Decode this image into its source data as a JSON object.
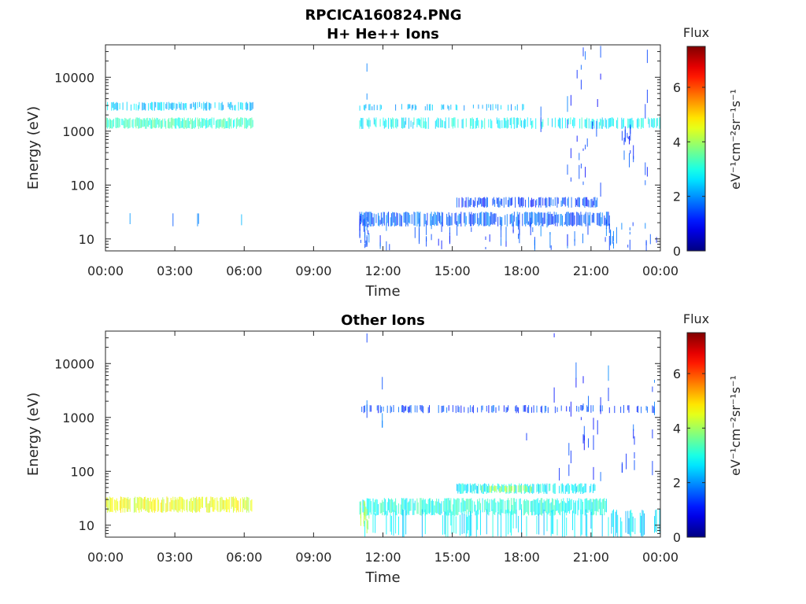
{
  "figure": {
    "title_line1": "RPCICA160824.PNG"
  },
  "chart_data": [
    {
      "type": "heatmap",
      "title": "H+ He++ Ions",
      "xlabel": "Time",
      "ylabel": "Energy (eV)",
      "x_ticks": [
        "00:00",
        "03:00",
        "06:00",
        "09:00",
        "12:00",
        "15:00",
        "18:00",
        "21:00",
        "00:00"
      ],
      "x_range_hours": [
        0,
        24
      ],
      "y_scale": "log",
      "y_ticks": [
        {
          "value": 10,
          "label": "10"
        },
        {
          "value": 100,
          "label": "100"
        },
        {
          "value": 1000,
          "label": "1000"
        },
        {
          "value": 10000,
          "label": "10000"
        }
      ],
      "y_range": [
        6,
        40000
      ],
      "colorbar": {
        "label_top": "Flux",
        "label_side": "eV⁻¹cm⁻²sr⁻¹s⁻¹",
        "range": [
          0,
          7.5
        ],
        "ticks": [
          "0",
          "2",
          "4",
          "6"
        ],
        "colormap": "jet"
      },
      "features": [
        {
          "x": [
            0.0,
            6.4
          ],
          "y": [
            1100,
            1800
          ],
          "flux": 3.2,
          "density": 0.9
        },
        {
          "x": [
            0.0,
            6.4
          ],
          "y": [
            2400,
            3500
          ],
          "flux": 2.4,
          "density": 0.6
        },
        {
          "x": [
            0.0,
            6.4
          ],
          "y": [
            17,
            30
          ],
          "flux": 2.0,
          "density": 0.05
        },
        {
          "x": [
            11.0,
            24.0
          ],
          "y": [
            1100,
            1800
          ],
          "flux": 2.8,
          "density": 0.6
        },
        {
          "x": [
            11.0,
            18.5
          ],
          "y": [
            2400,
            3200
          ],
          "flux": 2.2,
          "density": 0.25
        },
        {
          "x": [
            11.0,
            21.8
          ],
          "y": [
            17,
            32
          ],
          "flux": 1.6,
          "density": 0.8
        },
        {
          "x": [
            11.0,
            11.4
          ],
          "y": [
            7,
            30
          ],
          "flux": 1.5,
          "density": 0.8
        },
        {
          "x": [
            15.2,
            21.3
          ],
          "y": [
            38,
            60
          ],
          "flux": 1.4,
          "density": 0.7
        },
        {
          "x": [
            11.0,
            24.0
          ],
          "y": [
            6,
            25
          ],
          "flux": 1.5,
          "density": 0.15
        },
        {
          "x": [
            20.0,
            21.5
          ],
          "y": [
            60,
            40000
          ],
          "flux": 1.3,
          "density": 0.35
        },
        {
          "x": [
            22.3,
            22.9
          ],
          "y": [
            150,
            1500
          ],
          "flux": 1.3,
          "density": 0.4
        },
        {
          "x": [
            11.0,
            24.0
          ],
          "y": [
            60,
            40000
          ],
          "flux": 1.5,
          "density": 0.02
        }
      ]
    },
    {
      "type": "heatmap",
      "title": "Other Ions",
      "xlabel": "Time",
      "ylabel": "Energy (eV)",
      "x_ticks": [
        "00:00",
        "03:00",
        "06:00",
        "09:00",
        "12:00",
        "15:00",
        "18:00",
        "21:00",
        "00:00"
      ],
      "x_range_hours": [
        0,
        24
      ],
      "y_scale": "log",
      "y_ticks": [
        {
          "value": 10,
          "label": "10"
        },
        {
          "value": 100,
          "label": "100"
        },
        {
          "value": 1000,
          "label": "1000"
        },
        {
          "value": 10000,
          "label": "10000"
        }
      ],
      "y_range": [
        6,
        40000
      ],
      "colorbar": {
        "label_top": "Flux",
        "label_side": "eV⁻¹cm⁻²sr⁻¹s⁻¹",
        "range": [
          0,
          7.5
        ],
        "ticks": [
          "0",
          "2",
          "4",
          "6"
        ],
        "colormap": "jet"
      },
      "features": [
        {
          "x": [
            0.0,
            6.4
          ],
          "y": [
            17,
            34
          ],
          "flux": 4.5,
          "density": 0.85
        },
        {
          "x": [
            11.0,
            24.0
          ],
          "y": [
            1200,
            1700
          ],
          "flux": 1.4,
          "density": 0.35
        },
        {
          "x": [
            11.0,
            21.8
          ],
          "y": [
            15,
            32
          ],
          "flux": 3.0,
          "density": 0.85
        },
        {
          "x": [
            11.0,
            11.4
          ],
          "y": [
            7,
            30
          ],
          "flux": 4.0,
          "density": 0.8
        },
        {
          "x": [
            15.2,
            21.3
          ],
          "y": [
            38,
            60
          ],
          "flux": 2.8,
          "density": 0.75
        },
        {
          "x": [
            16.3,
            18.5
          ],
          "y": [
            40,
            55
          ],
          "flux": 4.0,
          "density": 0.6
        },
        {
          "x": [
            11.0,
            24.0
          ],
          "y": [
            6,
            20
          ],
          "flux": 2.6,
          "density": 0.3
        },
        {
          "x": [
            20.0,
            21.5
          ],
          "y": [
            60,
            12000
          ],
          "flux": 1.3,
          "density": 0.35
        },
        {
          "x": [
            22.3,
            22.9
          ],
          "y": [
            90,
            1500
          ],
          "flux": 1.3,
          "density": 0.45
        },
        {
          "x": [
            11.0,
            24.0
          ],
          "y": [
            60,
            40000
          ],
          "flux": 1.5,
          "density": 0.02
        }
      ]
    }
  ]
}
